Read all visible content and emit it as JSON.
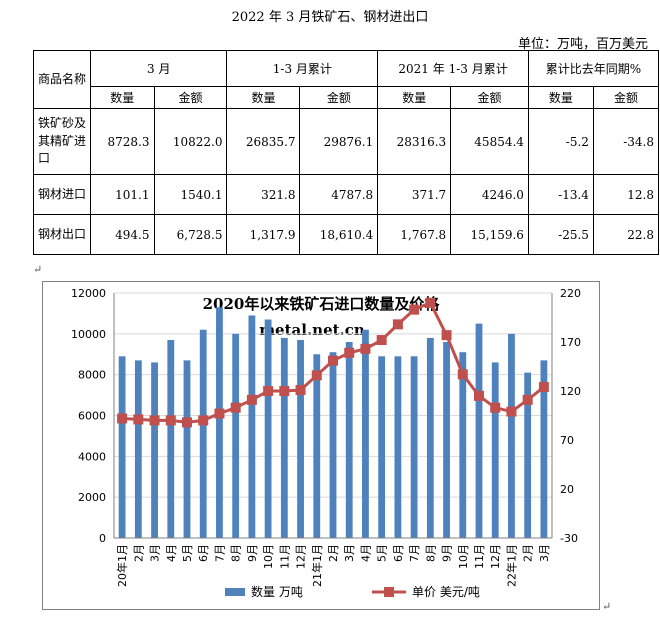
{
  "document": {
    "title": "2022 年 3 月铁矿石、钢材进出口",
    "unit": "单位：万吨，百万美元",
    "table": {
      "corner": "商品名称",
      "groups": [
        "3 月",
        "1-3 月累计",
        "2021 年 1-3 月累计",
        "累计比去年同期%"
      ],
      "subheaders": [
        "数量",
        "金额",
        "数量",
        "金额",
        "数量",
        "金额",
        "数量",
        "金额"
      ],
      "rows": [
        {
          "name": "铁矿砂及其精矿进口",
          "values": [
            "8728.3",
            "10822.0",
            "26835.7",
            "29876.1",
            "28316.3",
            "45854.4",
            "-5.2",
            "-34.8"
          ]
        },
        {
          "name": "钢材进口",
          "values": [
            "101.1",
            "1540.1",
            "321.8",
            "4787.8",
            "371.7",
            "4246.0",
            "-13.4",
            "12.8"
          ]
        },
        {
          "name": "钢材出口",
          "values": [
            "494.5",
            "6,728.5",
            "1,317.9",
            "18,610.4",
            "1,767.8",
            "15,159.6",
            "-25.5",
            "22.8"
          ]
        }
      ]
    }
  },
  "chart_data": {
    "type": "bar",
    "title": "2020年以来铁矿石进口数量及价格",
    "watermark": "metal.net.cn",
    "categories": [
      "20年1月",
      "2月",
      "3月",
      "4月",
      "5月",
      "6月",
      "7月",
      "8月",
      "9月",
      "10月",
      "11月",
      "12月",
      "21年1月",
      "2月",
      "3月",
      "4月",
      "5月",
      "6月",
      "7月",
      "8月",
      "9月",
      "10月",
      "11月",
      "12月",
      "22年1月",
      "2月",
      "3月"
    ],
    "series": [
      {
        "name": "数量   万吨",
        "type": "bar",
        "axis": "left",
        "color": "#4f81bd",
        "values": [
          8900,
          8700,
          8600,
          9700,
          8700,
          10200,
          11300,
          10000,
          10900,
          10700,
          9800,
          9700,
          9000,
          9100,
          9600,
          10200,
          8900,
          8900,
          8900,
          9800,
          9600,
          9100,
          10500,
          8600,
          10000,
          8100,
          8700
        ]
      },
      {
        "name": "单价   美元/吨",
        "type": "line",
        "axis": "right",
        "color": "#c0504d",
        "values": [
          92,
          91,
          90,
          90,
          88,
          90,
          97,
          103,
          111,
          120,
          120,
          121,
          136,
          151,
          159,
          163,
          172,
          188,
          203,
          210,
          177,
          137,
          115,
          103,
          99,
          111,
          124
        ]
      }
    ],
    "left_axis": {
      "min": 0,
      "max": 12000,
      "ticks": [
        0,
        2000,
        4000,
        6000,
        8000,
        10000,
        12000
      ]
    },
    "right_axis": {
      "min": -30,
      "max": 220,
      "ticks": [
        -30,
        20,
        70,
        120,
        170,
        220
      ]
    },
    "legend_position": "bottom",
    "colors": {
      "bar": "#4f81bd",
      "line": "#c0504d",
      "frame": "#808080"
    }
  }
}
